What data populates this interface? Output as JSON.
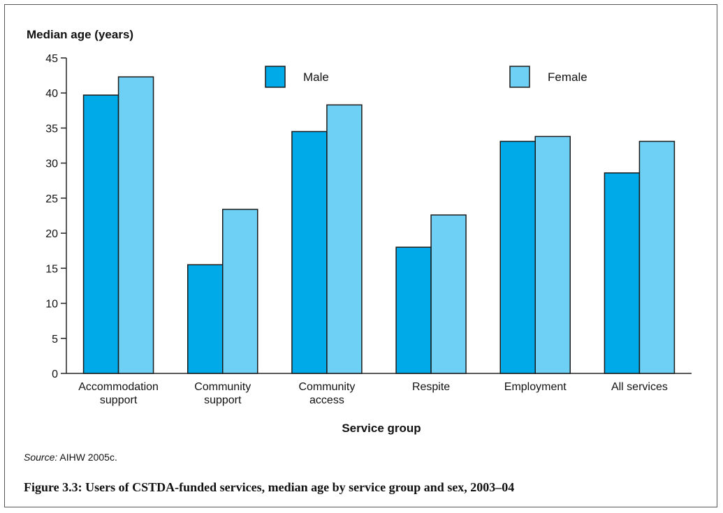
{
  "chart_data": {
    "type": "bar",
    "title": "",
    "ylabel": "Median age (years)",
    "xlabel": "Service group",
    "ylim": [
      0,
      45
    ],
    "yticks": [
      0,
      5,
      10,
      15,
      20,
      25,
      30,
      35,
      40,
      45
    ],
    "categories": [
      [
        "Accommodation",
        "support"
      ],
      [
        "Community",
        "support"
      ],
      [
        "Community",
        "access"
      ],
      [
        "Respite"
      ],
      [
        "Employment"
      ],
      [
        "All services"
      ]
    ],
    "series": [
      {
        "name": "Male",
        "color": "#00a9e8",
        "values": [
          39.7,
          15.5,
          34.5,
          18.0,
          33.1,
          28.6
        ]
      },
      {
        "name": "Female",
        "color": "#6fd0f5",
        "values": [
          42.3,
          23.4,
          38.3,
          22.6,
          33.8,
          33.1
        ]
      }
    ],
    "legend_position": "top",
    "grid": false
  },
  "source": {
    "label": "Source:",
    "text": " AIHW 2005c."
  },
  "caption": "Figure 3.3: Users of CSTDA-funded services, median age by service group and sex, 2003–04"
}
